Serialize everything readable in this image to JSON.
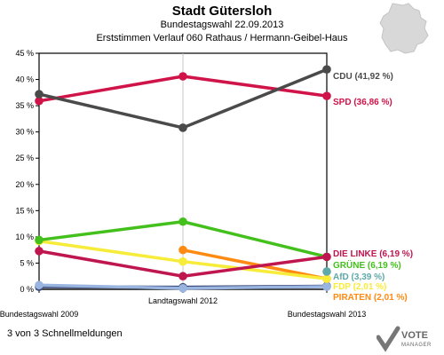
{
  "header": {
    "title": "Stadt Gütersloh",
    "subtitle1": "Bundestagswahl 22.09.2013",
    "subtitle2": "Erststimmen Verlauf 060 Rathaus / Hermann-Geibel-Haus"
  },
  "footer": {
    "note": "3 von 3 Schnellmeldungen"
  },
  "logo": {
    "line1": "VOTE",
    "line2": "MANAGER"
  },
  "chart_data": {
    "type": "line",
    "categories": [
      "Bundestagswahl 2009",
      "Landtagswahl 2012",
      "Bundestagswahl 2013"
    ],
    "ylim": [
      0,
      45
    ],
    "yticks": [
      0,
      5,
      10,
      15,
      20,
      25,
      30,
      35,
      40,
      45
    ],
    "ytick_labels": [
      "0 %",
      "5 %",
      "10 %",
      "15 %",
      "20 %",
      "25 %",
      "30 %",
      "35 %",
      "40 %",
      "45 %"
    ],
    "series": [
      {
        "name": "CDU",
        "label": "CDU (41,92 %)",
        "color": "#4a4a4a",
        "values": [
          37.2,
          30.8,
          41.92
        ]
      },
      {
        "name": "SPD",
        "label": "SPD (36,86 %)",
        "color": "#d01348",
        "values": [
          35.9,
          40.6,
          36.86
        ]
      },
      {
        "name": "DIE LINKE",
        "label": "DIE LINKE (6,19 %)",
        "color": "#c0164f",
        "values": [
          7.3,
          2.5,
          6.19
        ]
      },
      {
        "name": "GRÜNE",
        "label": "GRÜNE (6,19 %)",
        "color": "#44c01d",
        "values": [
          9.4,
          12.9,
          6.19
        ]
      },
      {
        "name": "AfD",
        "label": "AfD (3,39 %)",
        "color": "#5fa8a8",
        "values": [
          null,
          null,
          3.39
        ]
      },
      {
        "name": "FDP",
        "label": "FDP (2,01 %)",
        "color": "#f7ec3a",
        "values": [
          9.2,
          5.3,
          2.01
        ]
      },
      {
        "name": "PIRATEN",
        "label": "PIRATEN (2,01 %)",
        "color": "#ff8a12",
        "values": [
          null,
          7.5,
          2.01
        ]
      },
      {
        "name": "Sonstige1",
        "label": "",
        "color": "#9ab4e0",
        "values": [
          0.8,
          0.2,
          0.5
        ]
      },
      {
        "name": "Sonstige2",
        "label": "",
        "color": "#3b4a7a",
        "values": [
          0.5,
          0.4,
          0.6
        ]
      }
    ]
  }
}
